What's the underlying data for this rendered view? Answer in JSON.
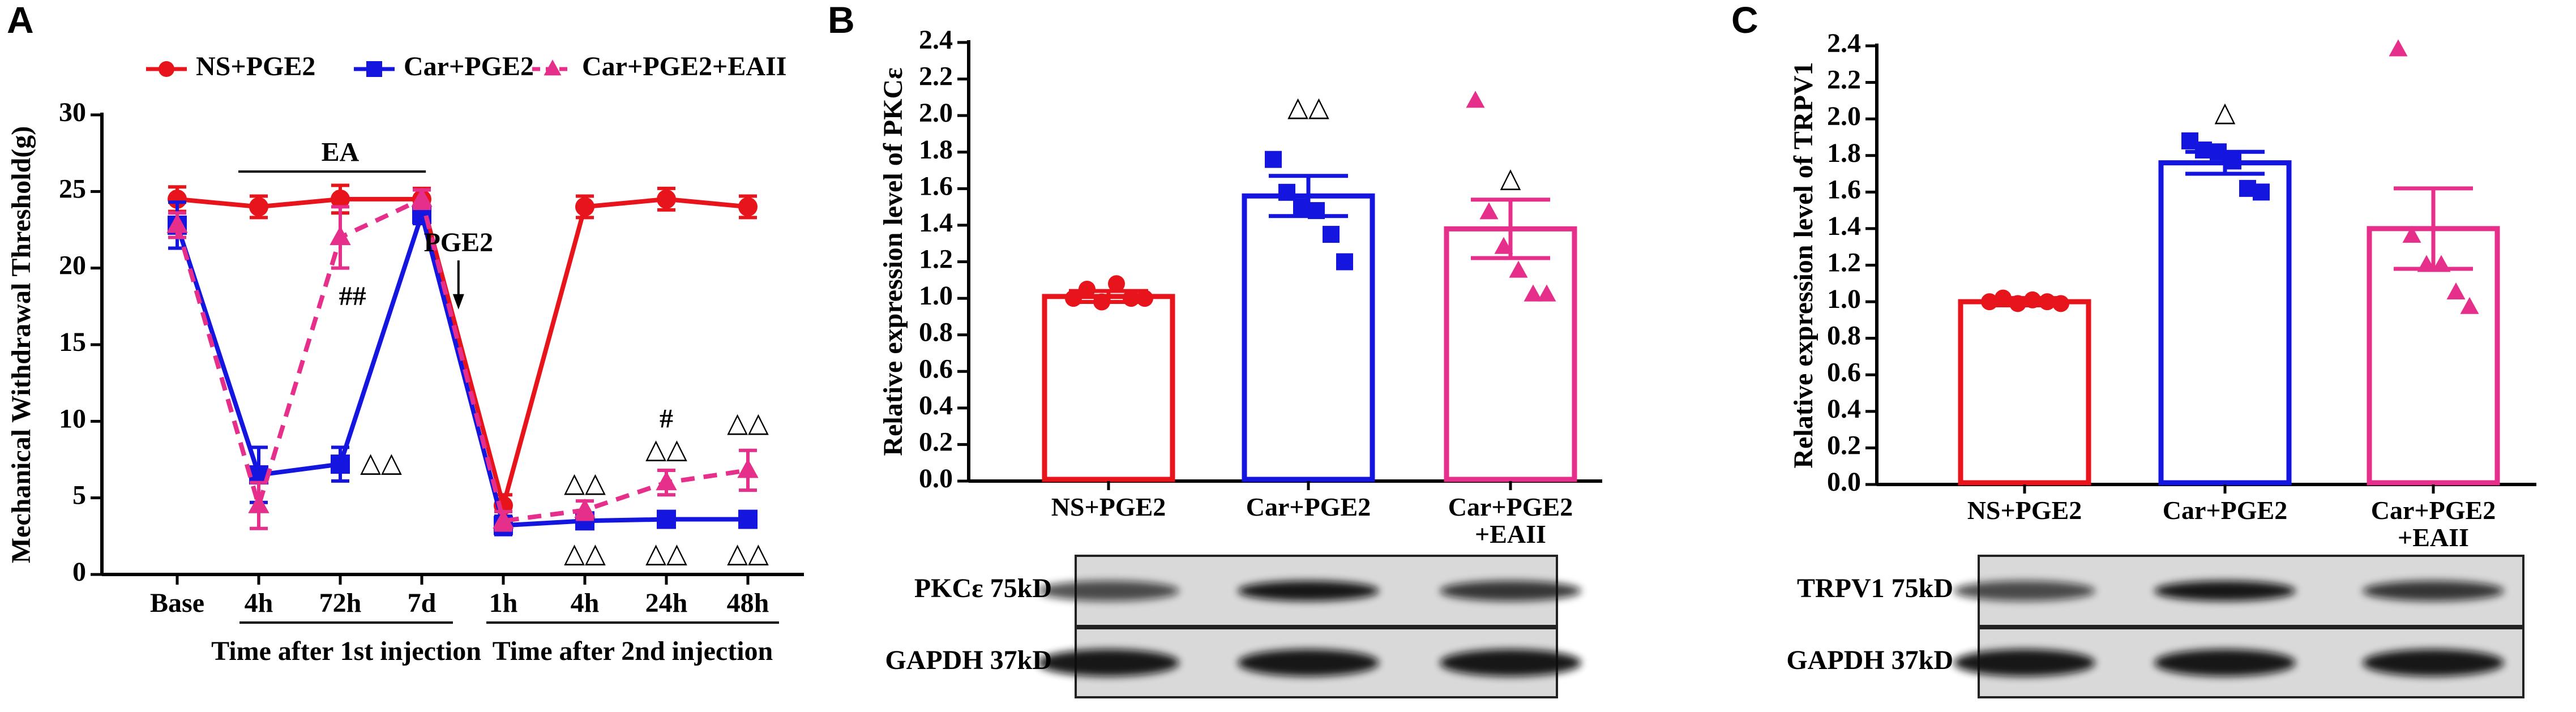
{
  "chart_data": [
    {
      "type": "line",
      "panel_label": "A",
      "ylabel": "Mechanical Withdrawal Threshold(g)",
      "categories": [
        "Base",
        "4h",
        "72h",
        "7d",
        "1h",
        "4h",
        "24h",
        "48h"
      ],
      "xgroups": [
        "Time after 1st injection",
        "Time after 2nd injection"
      ],
      "ylim": [
        0,
        30
      ],
      "yticks": [
        0,
        5,
        10,
        15,
        20,
        25,
        30
      ],
      "legend": "top",
      "series": [
        {
          "name": "NS+PGE2",
          "color": "#e8141b",
          "marker": "circle",
          "dashed": false,
          "values": [
            24.5,
            24,
            24.5,
            24.5,
            4.5,
            24,
            24.5,
            24
          ],
          "errors": [
            0.8,
            0.7,
            0.9,
            0.7,
            0.7,
            0.7,
            0.7,
            0.7
          ]
        },
        {
          "name": "Car+PGE2",
          "color": "#1515e0",
          "marker": "square",
          "dashed": false,
          "values": [
            22.8,
            6.5,
            7.2,
            23.5,
            3.2,
            3.5,
            3.6,
            3.6
          ],
          "errors": [
            1.5,
            1.8,
            1.1,
            0.6,
            0.6,
            0.4,
            0.4,
            0.3
          ]
        },
        {
          "name": "Car+PGE2+EAII",
          "color": "#e62e8b",
          "marker": "triangle",
          "dashed": true,
          "values": [
            22.8,
            4.5,
            22,
            24.5,
            3.5,
            4.2,
            6,
            6.8
          ],
          "errors": [
            0.8,
            1.5,
            2.0,
            0.6,
            0.6,
            0.6,
            0.8,
            1.3
          ]
        }
      ],
      "annotations": [
        "EA",
        "PGE2",
        "##",
        "△△",
        "△△",
        "△△",
        "△△",
        "#",
        "△△",
        "△△",
        "△△"
      ]
    },
    {
      "type": "bar",
      "panel_label": "B",
      "ylabel": "Relative expression level of PKCε",
      "categories": [
        "NS+PGE2",
        "Car+PGE2",
        "Car+PGE2 +EAII"
      ],
      "colors": [
        "#e8141b",
        "#1515e0",
        "#e62e8b"
      ],
      "markers": [
        "circle",
        "square",
        "triangle"
      ],
      "values": [
        1.01,
        1.56,
        1.38
      ],
      "errors": [
        0.03,
        0.11,
        0.16
      ],
      "points": [
        [
          1.0,
          1.05,
          0.98,
          1.08,
          1.0,
          1.0
        ],
        [
          1.76,
          1.58,
          1.5,
          1.48,
          1.35,
          1.2
        ],
        [
          2.08,
          1.47,
          1.28,
          1.15,
          1.02,
          1.02
        ]
      ],
      "ylim": [
        0,
        2.4
      ],
      "yticks": [
        {
          "value": 0,
          "label": "0.0"
        },
        {
          "value": 0.2,
          "label": "0.2"
        },
        {
          "value": 0.4,
          "label": "0.4"
        },
        {
          "value": 0.6,
          "label": "0.6"
        },
        {
          "value": 0.8,
          "label": "0.8"
        },
        {
          "value": 1.0,
          "label": "1.0"
        },
        {
          "value": 1.2,
          "label": "1.2"
        },
        {
          "value": 1.4,
          "label": "1.4"
        },
        {
          "value": 1.6,
          "label": "1.6"
        },
        {
          "value": 1.8,
          "label": "1.8"
        },
        {
          "value": 2.0,
          "label": "2.0"
        },
        {
          "value": 2.2,
          "label": "2.2"
        },
        {
          "value": 2.4,
          "label": "2.4"
        }
      ],
      "annotations": [
        "△△",
        "△"
      ],
      "blot_labels": [
        "PKCε 75kD",
        "GAPDH 37kD"
      ]
    },
    {
      "type": "bar",
      "panel_label": "C",
      "ylabel": "Relative expression level of TRPV1",
      "categories": [
        "NS+PGE2",
        "Car+PGE2",
        "Car+PGE2 +EAII"
      ],
      "colors": [
        "#e8141b",
        "#1515e0",
        "#e62e8b"
      ],
      "markers": [
        "circle",
        "square",
        "triangle"
      ],
      "values": [
        1.0,
        1.76,
        1.4
      ],
      "errors": [
        0.02,
        0.06,
        0.22
      ],
      "points": [
        [
          1.0,
          1.02,
          0.99,
          1.01,
          1.0,
          0.99
        ],
        [
          1.88,
          1.83,
          1.82,
          1.77,
          1.62,
          1.6
        ],
        [
          2.38,
          1.36,
          1.2,
          1.2,
          1.05,
          0.97
        ]
      ],
      "ylim": [
        0,
        2.4
      ],
      "yticks": [
        {
          "value": 0,
          "label": "0.0"
        },
        {
          "value": 0.2,
          "label": "0.2"
        },
        {
          "value": 0.4,
          "label": "0.4"
        },
        {
          "value": 0.6,
          "label": "0.6"
        },
        {
          "value": 0.8,
          "label": "0.8"
        },
        {
          "value": 1.0,
          "label": "1.0"
        },
        {
          "value": 1.2,
          "label": "1.2"
        },
        {
          "value": 1.4,
          "label": "1.4"
        },
        {
          "value": 1.6,
          "label": "1.6"
        },
        {
          "value": 1.8,
          "label": "1.8"
        },
        {
          "value": 2.0,
          "label": "2.0"
        },
        {
          "value": 2.2,
          "label": "2.2"
        },
        {
          "value": 2.4,
          "label": "2.4"
        }
      ],
      "annotations": [
        "△"
      ],
      "blot_labels": [
        "TRPV1 75kD",
        "GAPDH 37kD"
      ]
    }
  ]
}
